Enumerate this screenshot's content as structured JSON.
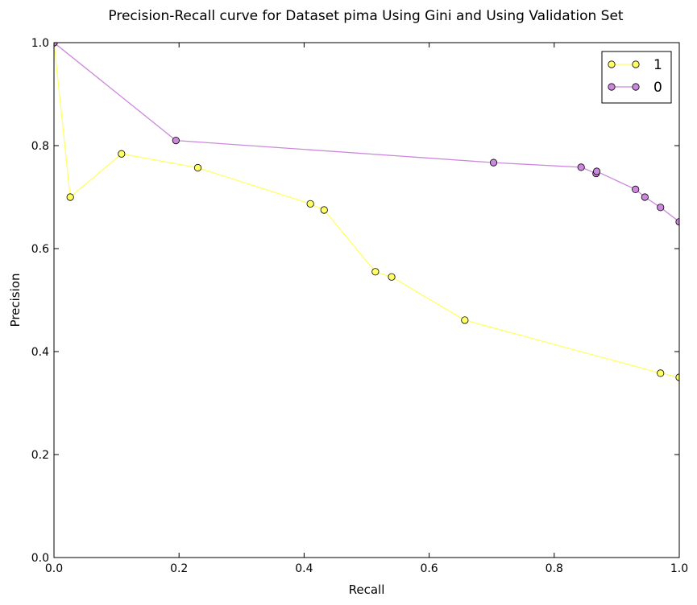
{
  "chart_data": {
    "type": "line",
    "title": "Precision-Recall curve for Dataset pima Using Gini and Using Validation Set",
    "xlabel": "Recall",
    "ylabel": "Precision",
    "xlim": [
      0.0,
      1.0
    ],
    "ylim": [
      0.0,
      1.0
    ],
    "xticks": [
      "0.0",
      "0.2",
      "0.4",
      "0.6",
      "0.8",
      "1.0"
    ],
    "yticks": [
      "0.0",
      "0.2",
      "0.4",
      "0.6",
      "0.8",
      "1.0"
    ],
    "grid": false,
    "legend_position": "top-right",
    "series": [
      {
        "name": "1",
        "color": "#ffff66",
        "x": [
          0.0,
          0.026,
          0.108,
          0.23,
          0.41,
          0.432,
          0.514,
          0.54,
          0.657,
          0.97,
          1.0
        ],
        "y": [
          1.0,
          0.7,
          0.784,
          0.757,
          0.687,
          0.675,
          0.555,
          0.545,
          0.461,
          0.358,
          0.35
        ]
      },
      {
        "name": "0",
        "color": "#cc88dd",
        "x": [
          0.0,
          0.195,
          0.703,
          0.843,
          0.867,
          0.868,
          0.93,
          0.945,
          0.97,
          1.0
        ],
        "y": [
          1.0,
          0.81,
          0.767,
          0.758,
          0.746,
          0.75,
          0.715,
          0.7,
          0.68,
          0.652
        ]
      }
    ]
  }
}
